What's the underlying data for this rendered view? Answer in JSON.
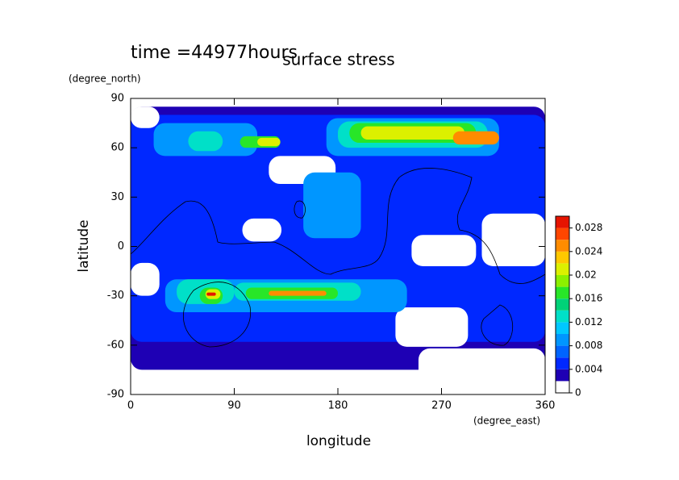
{
  "chart_data": {
    "type": "contour",
    "title": "surface stress",
    "subtitle": "time =44977hours",
    "xlabel": "longitude",
    "ylabel": "latitude",
    "xunit": "(degree_east)",
    "yunit": "(degree_north)",
    "xlim": [
      0,
      360
    ],
    "ylim": [
      -90,
      90
    ],
    "xticks": [
      0,
      90,
      180,
      270,
      360
    ],
    "yticks": [
      -90,
      -60,
      -30,
      0,
      30,
      60,
      90
    ],
    "clim": [
      0,
      0.03
    ],
    "levels": [
      0,
      0.002,
      0.004,
      0.006,
      0.008,
      0.01,
      0.012,
      0.014,
      0.016,
      0.018,
      0.02,
      0.022,
      0.024,
      0.026,
      0.028
    ],
    "colors": [
      "#ffffff",
      "#1e00b4",
      "#0028ff",
      "#0064ff",
      "#0096ff",
      "#00c8ff",
      "#00e0c8",
      "#00d278",
      "#28e628",
      "#8cf000",
      "#dcf000",
      "#ffc800",
      "#ff8c00",
      "#ff4600",
      "#e61400"
    ],
    "cticks": [
      0,
      0.004,
      0.008,
      0.012,
      0.016,
      0.02,
      0.024,
      0.028
    ],
    "regions": [
      {
        "lon": [
          0,
          360
        ],
        "lat": [
          -75,
          85
        ],
        "level": 0.002
      },
      {
        "lon": [
          0,
          360
        ],
        "lat": [
          -58,
          80
        ],
        "level": 0.004
      },
      {
        "lon": [
          0,
          25
        ],
        "lat": [
          72,
          85
        ],
        "level": 0
      },
      {
        "lon": [
          97,
          131
        ],
        "lat": [
          3,
          17
        ],
        "level": 0
      },
      {
        "lon": [
          244,
          300
        ],
        "lat": [
          -12,
          7
        ],
        "level": 0
      },
      {
        "lon": [
          305,
          360
        ],
        "lat": [
          -12,
          20
        ],
        "level": 0
      },
      {
        "lon": [
          230,
          293
        ],
        "lat": [
          -61,
          -37
        ],
        "level": 0
      },
      {
        "lon": [
          120,
          178
        ],
        "lat": [
          38,
          55
        ],
        "level": 0
      },
      {
        "lon": [
          0,
          25
        ],
        "lat": [
          -30,
          -10
        ],
        "level": 0
      },
      {
        "lon": [
          250,
          360
        ],
        "lat": [
          -90,
          -62
        ],
        "level": 0
      },
      {
        "lon": [
          20,
          110
        ],
        "lat": [
          55,
          75
        ],
        "level": 0.008
      },
      {
        "lon": [
          170,
          320
        ],
        "lat": [
          55,
          78
        ],
        "level": 0.008
      },
      {
        "lon": [
          30,
          240
        ],
        "lat": [
          -40,
          -20
        ],
        "level": 0.008
      },
      {
        "lon": [
          150,
          200
        ],
        "lat": [
          5,
          45
        ],
        "level": 0.008
      },
      {
        "lon": [
          180,
          310
        ],
        "lat": [
          60,
          76
        ],
        "level": 0.012
      },
      {
        "lon": [
          40,
          90
        ],
        "lat": [
          -35,
          -20
        ],
        "level": 0.012
      },
      {
        "lon": [
          90,
          200
        ],
        "lat": [
          -33,
          -22
        ],
        "level": 0.012
      },
      {
        "lon": [
          50,
          80
        ],
        "lat": [
          58,
          70
        ],
        "level": 0.012
      },
      {
        "lon": [
          190,
          300
        ],
        "lat": [
          63,
          75
        ],
        "level": 0.016
      },
      {
        "lon": [
          60,
          80
        ],
        "lat": [
          -35,
          -25
        ],
        "level": 0.016
      },
      {
        "lon": [
          100,
          180
        ],
        "lat": [
          -32,
          -25
        ],
        "level": 0.016
      },
      {
        "lon": [
          95,
          130
        ],
        "lat": [
          60,
          67
        ],
        "level": 0.016
      },
      {
        "lon": [
          200,
          290
        ],
        "lat": [
          65,
          73
        ],
        "level": 0.02
      },
      {
        "lon": [
          110,
          130
        ],
        "lat": [
          61,
          66
        ],
        "level": 0.02
      },
      {
        "lon": [
          65,
          78
        ],
        "lat": [
          -32,
          -26
        ],
        "level": 0.02
      },
      {
        "lon": [
          280,
          320
        ],
        "lat": [
          62,
          70
        ],
        "level": 0.024
      },
      {
        "lon": [
          120,
          170
        ],
        "lat": [
          -30,
          -27
        ],
        "level": 0.024
      },
      {
        "lon": [
          66,
          74
        ],
        "lat": [
          -30,
          -28
        ],
        "level": 0.028
      }
    ]
  }
}
